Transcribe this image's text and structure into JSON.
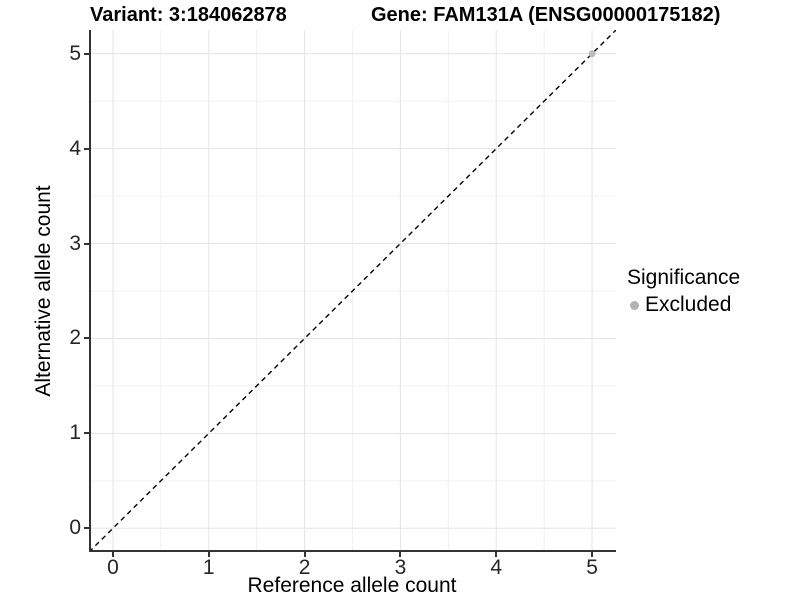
{
  "figure": {
    "title_left": "Variant: 3:184062878",
    "title_right": "Gene: FAM131A (ENSG00000175182)"
  },
  "chart_data": {
    "type": "scatter",
    "xlabel": "Reference allele count",
    "ylabel": "Alternative allele count",
    "xlim": [
      -0.25,
      5.25
    ],
    "ylim": [
      -0.25,
      5.25
    ],
    "x_ticks": [
      0,
      1,
      2,
      3,
      4,
      5
    ],
    "y_ticks": [
      0,
      1,
      2,
      3,
      4,
      5
    ],
    "x_minor": [
      0.5,
      1.5,
      2.5,
      3.5,
      4.5
    ],
    "y_minor": [
      0.5,
      1.5,
      2.5,
      3.5,
      4.5
    ],
    "grid": "major+minor",
    "reference_line": {
      "kind": "identity y=x",
      "from": [
        -0.25,
        -0.25
      ],
      "to": [
        5.25,
        5.25
      ],
      "style": "dashed",
      "color": "#000000"
    },
    "series": [
      {
        "name": "Excluded",
        "color": "#bdbdbd",
        "points": [
          [
            5,
            5
          ]
        ]
      }
    ],
    "legend": {
      "title": "Significance",
      "position": "right",
      "items": [
        {
          "label": "Excluded",
          "color": "#b3b3b3"
        }
      ]
    },
    "colors": {
      "axis_line": "#333333",
      "grid_major": "#e4e4e4",
      "grid_minor": "#f0f0f0",
      "panel_background": "#ffffff"
    }
  }
}
